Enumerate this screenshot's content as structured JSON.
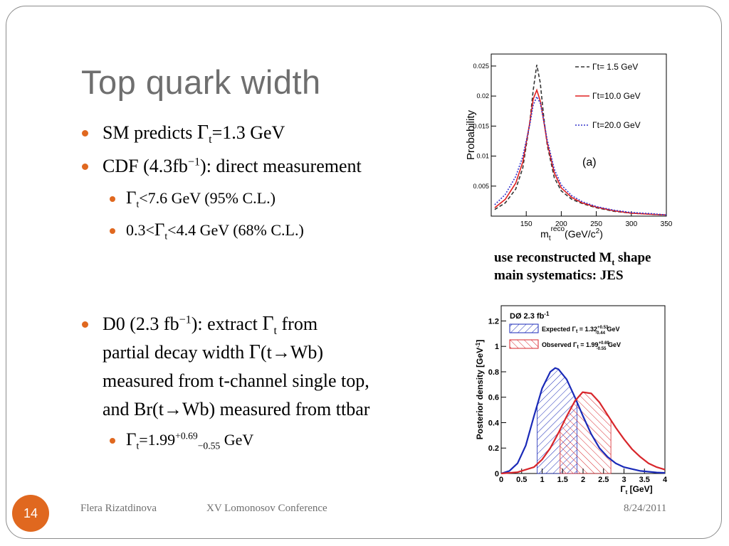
{
  "slide": {
    "title": "Top quark width",
    "page_number": "14",
    "footer_author": "Flera Rizatdinova",
    "footer_event": "XV Lomonosov Conference",
    "footer_date": "8/24/2011",
    "accent_color": "#e0681f"
  },
  "bullets": {
    "sm_prefix": "SM predicts ",
    "gamma": "Γ",
    "t": "t",
    "sm_value": "=1.3 GeV",
    "cdf_prefix": "CDF (4.3fb",
    "inv": "−1",
    "cdf_suffix": "): direct measurement",
    "cdf_limit_value": "<7.6 GeV (95% C.L.)",
    "cdf_range_prefix": "0.3<",
    "cdf_range_suffix": "<4.4 GeV (68% C.L.)",
    "d0_prefix": "D0 (2.3 fb",
    "d0_mid": "): extract ",
    "d0_from": " from",
    "d0_line2_prefix": "partial decay width  ",
    "d0_line2_decay": "(t→Wb)",
    "d0_line3": "measured from t-channel single top,",
    "d0_line4": "and Br(t→Wb) measured from ttbar",
    "d0_result_eq": "=1.99",
    "d0_result_up": "+0.69",
    "d0_result_down": "−0.55",
    "d0_result_unit": " GeV"
  },
  "caption": {
    "line1_prefix": "use reconstructed M",
    "line1_sub": "t",
    "line1_suffix": " shape",
    "line2": "main systematics: JES"
  },
  "chart_data": [
    {
      "type": "line",
      "panel_label": "(a)",
      "ylabel": "Probability",
      "xlabel_main": "m",
      "xlabel_sub": "t",
      "xlabel_sup": "reco",
      "xlabel_units": "(GeV/c",
      "xlabel_units_sup": "2",
      "xlabel_units_end": ")",
      "xlim": [
        100,
        350
      ],
      "ylim": [
        0,
        0.027
      ],
      "x_ticks": [
        150,
        200,
        250,
        300,
        350
      ],
      "x_tick_labels": [
        "150",
        "200",
        "250",
        "300",
        "350"
      ],
      "y_ticks": [
        0.005,
        0.01,
        0.015,
        0.02,
        0.025
      ],
      "y_tick_labels": [
        "0.005",
        "0.01",
        "0.015",
        "0.02",
        "0.025"
      ],
      "series": [
        {
          "name": "Γt= 1.5 GeV",
          "color": "#333333",
          "style": "dashed",
          "x": [
            105,
            120,
            135,
            145,
            155,
            160,
            165,
            170,
            175,
            180,
            190,
            200,
            215,
            230,
            250,
            275,
            300,
            330,
            350
          ],
          "y": [
            0.0011,
            0.0022,
            0.0045,
            0.008,
            0.0155,
            0.021,
            0.0252,
            0.0222,
            0.0165,
            0.0118,
            0.0064,
            0.0042,
            0.0028,
            0.0021,
            0.0014,
            0.0008,
            0.0005,
            0.0003,
            0.0002
          ]
        },
        {
          "name": "Γt=10.0 GeV",
          "color": "#e02020",
          "style": "solid",
          "x": [
            105,
            120,
            135,
            145,
            155,
            160,
            165,
            170,
            175,
            180,
            190,
            200,
            215,
            230,
            250,
            275,
            300,
            330,
            350
          ],
          "y": [
            0.0014,
            0.0028,
            0.0055,
            0.009,
            0.0155,
            0.0195,
            0.021,
            0.0192,
            0.0158,
            0.0122,
            0.0072,
            0.0047,
            0.0031,
            0.0022,
            0.0015,
            0.0009,
            0.0005,
            0.0003,
            0.0002
          ]
        },
        {
          "name": "Γt=20.0 GeV",
          "color": "#3333cc",
          "style": "dotted",
          "x": [
            105,
            120,
            135,
            145,
            155,
            160,
            165,
            170,
            175,
            180,
            190,
            200,
            215,
            230,
            250,
            275,
            300,
            330,
            350
          ],
          "y": [
            0.0019,
            0.0036,
            0.0066,
            0.0099,
            0.0152,
            0.0185,
            0.0199,
            0.0188,
            0.0159,
            0.0127,
            0.0078,
            0.0052,
            0.0034,
            0.0024,
            0.0016,
            0.001,
            0.0006,
            0.0004,
            0.0002
          ]
        }
      ]
    },
    {
      "type": "line",
      "panel_title": "DØ 2.3 fb",
      "panel_title_sup": "-1",
      "ylabel": "Posterior density [GeV",
      "ylabel_sup": "-1",
      "ylabel_end": "]",
      "xlabel_main": "Γ",
      "xlabel_sub": "t",
      "xlabel_units": " [GeV]",
      "xlim": [
        0,
        4
      ],
      "ylim": [
        0,
        1.32
      ],
      "x_ticks": [
        0,
        0.5,
        1,
        1.5,
        2,
        2.5,
        3,
        3.5,
        4
      ],
      "x_tick_labels": [
        "0",
        "0.5",
        "1",
        "1.5",
        "2",
        "2.5",
        "3",
        "3.5",
        "4"
      ],
      "y_ticks": [
        0,
        0.2,
        0.4,
        0.6,
        0.8,
        1,
        1.2
      ],
      "y_tick_labels": [
        "0",
        "0.2",
        "0.4",
        "0.6",
        "0.8",
        "1",
        "1.2"
      ],
      "series": [
        {
          "name": "Expected Γt = 1.32 GeV",
          "name_prefix": "Expected Γ",
          "name_sub": "t",
          "name_value": " = 1.32",
          "name_up": "+0.53",
          "name_down": "-0.44",
          "name_unit": " GeV",
          "color": "#1a2ab8",
          "hatch_range": [
            0.88,
            1.85
          ],
          "x": [
            0,
            0.2,
            0.4,
            0.6,
            0.8,
            1.0,
            1.2,
            1.32,
            1.4,
            1.6,
            1.8,
            2.0,
            2.2,
            2.4,
            2.6,
            2.8,
            3.0,
            3.4,
            3.8,
            4.0
          ],
          "y": [
            0,
            0.02,
            0.08,
            0.22,
            0.45,
            0.67,
            0.8,
            0.83,
            0.82,
            0.74,
            0.6,
            0.45,
            0.31,
            0.2,
            0.13,
            0.08,
            0.05,
            0.02,
            0.008,
            0.005
          ]
        },
        {
          "name": "Observed Γt = 1.99 GeV",
          "name_prefix": "Observed Γ",
          "name_sub": "t",
          "name_value": " = 1.99",
          "name_up": "+0.69",
          "name_down": "-0.55",
          "name_unit": " GeV",
          "color": "#d8262b",
          "hatch_range": [
            1.44,
            2.68
          ],
          "x": [
            0,
            0.4,
            0.8,
            1.0,
            1.2,
            1.4,
            1.6,
            1.8,
            1.99,
            2.2,
            2.4,
            2.6,
            2.8,
            3.0,
            3.2,
            3.4,
            3.6,
            3.8,
            4.0
          ],
          "y": [
            0,
            0.01,
            0.05,
            0.11,
            0.2,
            0.32,
            0.45,
            0.57,
            0.64,
            0.63,
            0.56,
            0.46,
            0.36,
            0.27,
            0.19,
            0.13,
            0.08,
            0.05,
            0.03
          ]
        }
      ]
    }
  ]
}
